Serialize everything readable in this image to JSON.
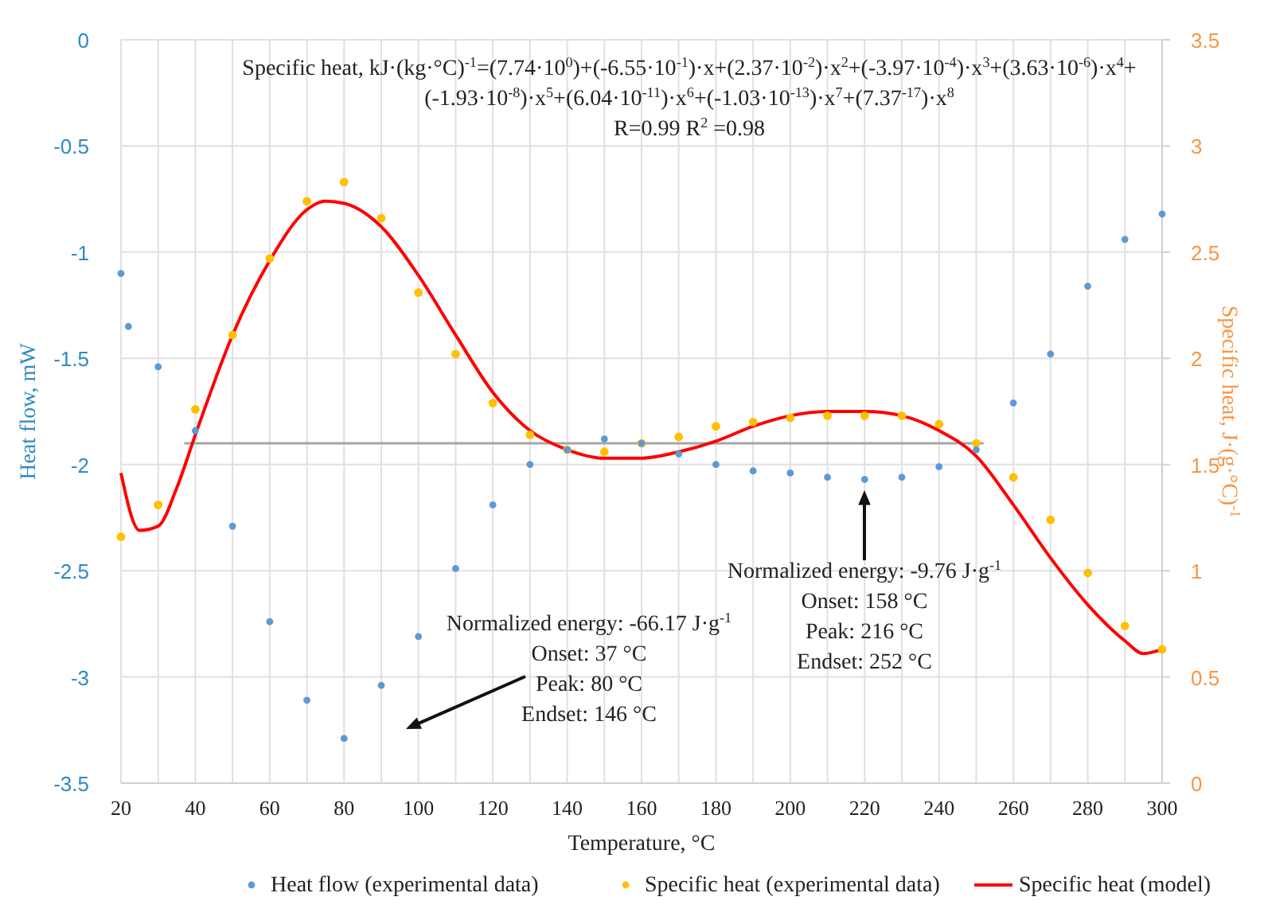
{
  "chart_data": {
    "type": "scatter",
    "xlabel": "Temperature, °C",
    "ylabel": "Heat flow, mW",
    "y2label": "Specific heat, J·(g·°C)$^{-1}$",
    "xlim": [
      20,
      300
    ],
    "xticks": [
      20,
      {
        "value": 30,
        "label": null
      },
      40,
      {
        "value": 50,
        "label": null
      },
      60,
      {
        "value": 70,
        "label": null
      },
      80,
      {
        "value": 90,
        "label": null
      },
      100,
      {
        "value": 110,
        "label": null
      },
      120,
      {
        "value": 130,
        "label": null
      },
      140,
      {
        "value": 150,
        "label": null
      },
      160,
      {
        "value": 170,
        "label": null
      },
      180,
      {
        "value": 190,
        "label": null
      },
      200,
      {
        "value": 210,
        "label": null
      },
      220,
      {
        "value": 230,
        "label": null
      },
      240,
      {
        "value": 250,
        "label": null
      },
      260,
      {
        "value": 270,
        "label": null
      },
      280,
      {
        "value": 290,
        "label": null
      },
      300
    ],
    "ylim": [
      -3.5,
      0
    ],
    "yticks": [
      -3.5,
      -3,
      -2.5,
      -2,
      -1.5,
      -1,
      -0.5,
      0
    ],
    "y2lim": [
      0,
      3.5
    ],
    "y2ticks": [
      0,
      0.5,
      1,
      1.5,
      2,
      2.5,
      3,
      3.5
    ],
    "grid": true,
    "legend": "bottom",
    "marker": "circle",
    "series": [
      {
        "name": "Heat flow (experimental data)",
        "color": "#5b9bd5",
        "x": [
          20,
          22,
          30,
          40,
          50,
          60,
          70,
          80,
          90,
          100,
          110,
          120,
          130,
          140,
          150,
          160,
          170,
          180,
          190,
          200,
          210,
          220,
          230,
          240,
          250,
          260,
          270,
          280,
          290,
          300
        ],
        "values": [
          -1.1,
          -1.35,
          -1.54,
          -1.84,
          -2.29,
          -2.74,
          -3.11,
          -3.29,
          -3.04,
          -2.81,
          -2.49,
          -2.19,
          -2.0,
          -1.93,
          -1.88,
          -1.9,
          -1.95,
          -2.0,
          -2.03,
          -2.04,
          -2.06,
          -2.07,
          -2.06,
          -2.01,
          -1.93,
          -1.71,
          -1.48,
          -1.16,
          -0.94,
          -0.82
        ]
      },
      {
        "name": "Specific heat (experimental data)",
        "axis": "y2",
        "color": "#ffc000",
        "x": [
          20,
          30,
          40,
          50,
          60,
          70,
          80,
          90,
          100,
          110,
          120,
          130,
          140,
          150,
          160,
          170,
          180,
          190,
          200,
          210,
          220,
          230,
          240,
          250,
          260,
          270,
          280,
          290,
          300
        ],
        "values": [
          1.16,
          1.31,
          1.76,
          2.11,
          2.47,
          2.74,
          2.83,
          2.66,
          2.31,
          2.02,
          1.79,
          1.64,
          1.57,
          1.56,
          1.6,
          1.63,
          1.68,
          1.7,
          1.72,
          1.73,
          1.73,
          1.73,
          1.69,
          1.6,
          1.44,
          1.24,
          0.99,
          0.74,
          0.63
        ]
      },
      {
        "name": "Specific heat (model)",
        "type": "line",
        "axis": "y2",
        "color": "#ff0000",
        "marker": "none",
        "x": [
          20,
          25,
          30,
          35,
          40,
          50,
          60,
          70,
          75,
          80,
          90,
          100,
          110,
          120,
          130,
          140,
          150,
          160,
          170,
          180,
          190,
          200,
          210,
          220,
          230,
          240,
          250,
          260,
          270,
          280,
          290,
          295,
          300
        ],
        "values": [
          1.46,
          1.19,
          1.21,
          1.39,
          1.64,
          2.11,
          2.46,
          2.7,
          2.74,
          2.73,
          2.62,
          2.39,
          2.11,
          1.84,
          1.66,
          1.57,
          1.53,
          1.53,
          1.56,
          1.61,
          1.68,
          1.73,
          1.75,
          1.75,
          1.73,
          1.66,
          1.54,
          1.31,
          1.06,
          0.84,
          0.67,
          0.61,
          0.63
        ]
      },
      {
        "type": "line",
        "color": "#a6a6a6",
        "marker": "none",
        "x": [
          37,
          252
        ],
        "values": [
          -1.9,
          -1.9
        ]
      }
    ],
    "annotations": [
      "Specific heat, kJ·(kg·°C)$^{-1}$=(7.74·10$^{0}$)+(-6.55·10$^{-1}$)·x+(2.37·10$^{-2}$)·x$^{2}$+(-3.97·10$^{-4}$)·x$^{3}$+(3.63·10$^{-6}$)·x$^{4}$+\n(-1.93·10$^{-8}$)·x$^{5}$+(6.04·10$^{-11}$)·x$^{6}$+(-1.03·10$^{-13}$)·x$^{7}$+(7.37$^{-17}$)·x$^{8}$\nR=0.99 R$^{2}$ =0.98",
      "Normalized energy: -66.17 J·g$^{-1}$",
      "Onset: 37 °C",
      "Peak: 80 °C",
      "Endset: 146 °C",
      "Normalized energy: -9.76 J·g$^{-1}$",
      "Onset: 158 °C",
      "Peak: 216 °C",
      "Endset: 252 °C"
    ]
  }
}
